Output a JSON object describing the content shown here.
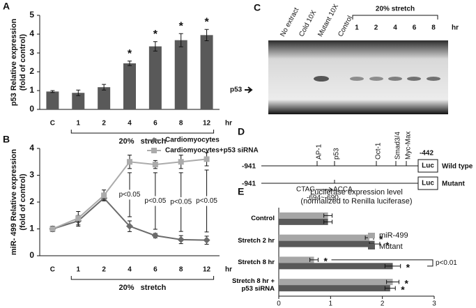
{
  "chart_data": [
    {
      "type": "bar",
      "panel_label": "A",
      "ylabel": [
        "p53 Relative expression",
        "(fold of control)"
      ],
      "categories": [
        "C",
        "1",
        "2",
        "4",
        "6",
        "8",
        "12"
      ],
      "values": [
        0.95,
        0.88,
        1.18,
        2.45,
        3.35,
        3.68,
        3.95
      ],
      "errors": [
        0.05,
        0.15,
        0.15,
        0.12,
        0.25,
        0.35,
        0.3
      ],
      "color": "#595959",
      "significance": [
        null,
        null,
        null,
        "*",
        "*",
        "*",
        "*"
      ],
      "x_unit": "hr",
      "group_label": "20%   stretch",
      "ylim": [
        0,
        5
      ],
      "yticks": [
        0,
        1,
        2,
        3,
        4,
        5
      ]
    },
    {
      "type": "line",
      "panel_label": "B",
      "ylabel": [
        "miR- 499 Relative expression",
        "(fold of control)"
      ],
      "categories": [
        "C",
        "1",
        "2",
        "4",
        "6",
        "8",
        "12"
      ],
      "series": [
        {
          "name": "Cardiomyocytes",
          "color": "#6b6b6b",
          "marker": "diamond",
          "values": [
            1.0,
            1.3,
            2.15,
            1.1,
            0.75,
            0.6,
            0.58
          ],
          "errors": [
            0.1,
            0.2,
            0.1,
            0.2,
            0.08,
            0.15,
            0.15
          ]
        },
        {
          "name": "Cardiomyocytes+p53 siRNA",
          "color": "#ababab",
          "marker": "square",
          "values": [
            1.0,
            1.4,
            2.25,
            3.5,
            3.4,
            3.5,
            3.6
          ],
          "errors": [
            0.1,
            0.25,
            0.2,
            0.25,
            0.15,
            0.25,
            0.25
          ]
        }
      ],
      "p_labels": [
        null,
        null,
        null,
        "p<0.05",
        "p<0.05",
        "p<0.05",
        "p<0.05"
      ],
      "x_unit": "hr",
      "group_label": "20%   stretch",
      "legend": "top-right",
      "ylim": [
        0,
        4
      ],
      "yticks": [
        0,
        1,
        2,
        3,
        4
      ]
    },
    {
      "type": "hbar",
      "panel_label": "E",
      "title": [
        "Luciferase expression level",
        "(normalized to Renilla luciferase)"
      ],
      "categories": [
        "Control",
        "Stretch 2 hr",
        "Stretch 8 hr",
        "Stretch 8 hr + p53 siRNA"
      ],
      "series": [
        {
          "name": "miR-499",
          "color": "#a6a6a6",
          "values": [
            0.95,
            1.75,
            0.68,
            2.2
          ],
          "errors": [
            0.08,
            0.08,
            0.08,
            0.12
          ],
          "significance": [
            null,
            "*",
            "*",
            "*"
          ]
        },
        {
          "name": "Mutant",
          "color": "#595959",
          "values": [
            0.95,
            1.85,
            2.2,
            2.15
          ],
          "errors": [
            0.08,
            0.1,
            0.15,
            0.1
          ],
          "significance": [
            null,
            "*",
            "*",
            "*"
          ]
        }
      ],
      "comparison_label": "p<0.01",
      "legend": "top-right",
      "xlim": [
        0,
        3
      ],
      "xticks": [
        0,
        1,
        2,
        3
      ]
    }
  ],
  "gel": {
    "panel_label": "C",
    "lanes": [
      "No extract",
      "Cold 10X",
      "Mutant 10X",
      "Control"
    ],
    "stretch_lanes": [
      "1",
      "2",
      "4",
      "6",
      "8"
    ],
    "unit": "hr",
    "group_label": "20% stretch",
    "band_label": "p53"
  },
  "diagram": {
    "panel_label": "D",
    "start": "-941",
    "end": "-442",
    "reporter": "Luc",
    "sites": [
      "AP-1",
      "p53",
      "Oct-1",
      "Smad3/4",
      "Myc-Max"
    ],
    "wild_type": "Wild type",
    "mutant": "Mutant",
    "mutant_start": "-941",
    "mutant_reporter": "Luc",
    "original_seq": "CTAG",
    "mutated_seq": "ACCA,",
    "position": "-694~-690"
  }
}
